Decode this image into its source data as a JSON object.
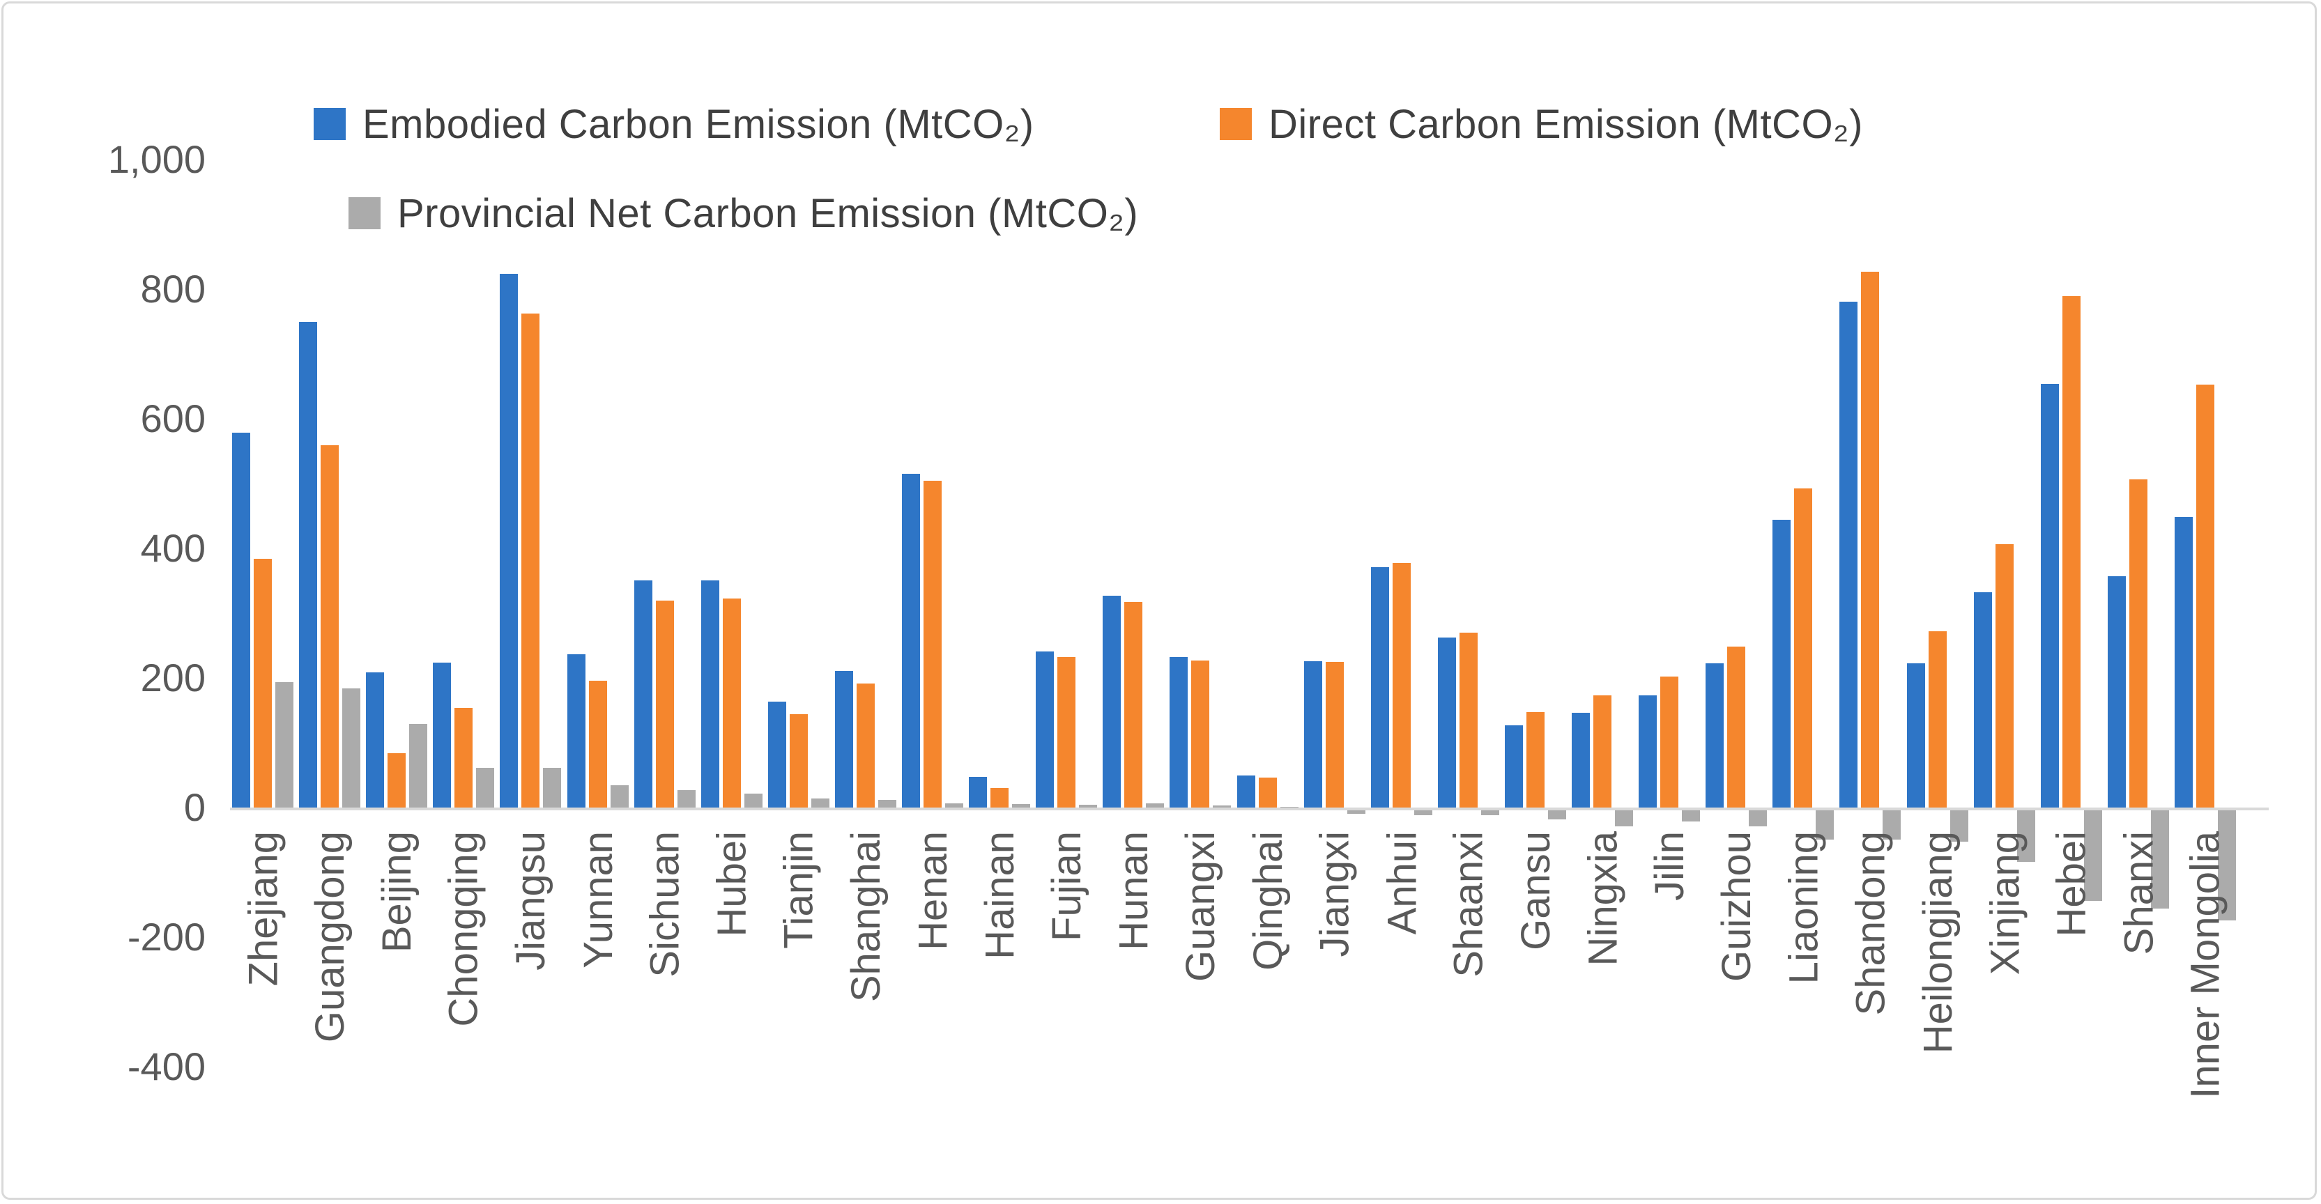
{
  "legend": {
    "items": [
      {
        "label": "Embodied Carbon Emission (MtCO₂)",
        "color": "#2e75c6"
      },
      {
        "label": "Direct Carbon Emission (MtCO₂)",
        "color": "#f5862d"
      },
      {
        "label": "Provincial Net Carbon Emission (MtCO₂)",
        "color": "#ababab"
      }
    ]
  },
  "y_axis": {
    "tick_labels": [
      "1,000",
      "800",
      "600",
      "400",
      "200",
      "0",
      "-200",
      "-400"
    ]
  },
  "chart_data": {
    "type": "bar",
    "title": "",
    "xlabel": "",
    "ylabel": "",
    "ylim": [
      -400,
      1000
    ],
    "y_tick_step": 200,
    "grid": false,
    "legend_position": "top-left",
    "categories": [
      "Zhejiang",
      "Guangdong",
      "Beijing",
      "Chongqing",
      "Jiangsu",
      "Yunnan",
      "Sichuan",
      "Hubei",
      "Tianjin",
      "Shanghai",
      "Henan",
      "Hainan",
      "Fujian",
      "Hunan",
      "Guangxi",
      "Qinghai",
      "Jiangxi",
      "Anhui",
      "Shaanxi",
      "Gansu",
      "Ningxia",
      "Jilin",
      "Guizhou",
      "Liaoning",
      "Shandong",
      "Heilongjiang",
      "Xinjiang",
      "Hebei",
      "Shanxi",
      "Inner Mongolia"
    ],
    "series": [
      {
        "name": "Embodied Carbon Emission (MtCO₂)",
        "color": "#2e75c6",
        "values": [
          580,
          750,
          210,
          225,
          825,
          238,
          352,
          352,
          165,
          212,
          516,
          48,
          242,
          328,
          233,
          50,
          227,
          372,
          263,
          128,
          147,
          174,
          224,
          445,
          782,
          224,
          333,
          655,
          358,
          449
        ]
      },
      {
        "name": "Direct Carbon Emission (MtCO₂)",
        "color": "#f5862d",
        "values": [
          385,
          560,
          85,
          155,
          763,
          197,
          320,
          324,
          145,
          193,
          505,
          31,
          233,
          318,
          228,
          47,
          226,
          379,
          271,
          148,
          174,
          203,
          249,
          494,
          828,
          273,
          408,
          790,
          508,
          654
        ]
      },
      {
        "name": "Provincial Net Carbon Emission (MtCO₂)",
        "color": "#ababab",
        "values": [
          195,
          185,
          130,
          62,
          62,
          36,
          28,
          23,
          15,
          13,
          8,
          6,
          5,
          8,
          4,
          2,
          -5,
          -7,
          -8,
          -14,
          -25,
          -17,
          -25,
          -45,
          -45,
          -48,
          -80,
          -140,
          -152,
          -170
        ]
      }
    ]
  }
}
